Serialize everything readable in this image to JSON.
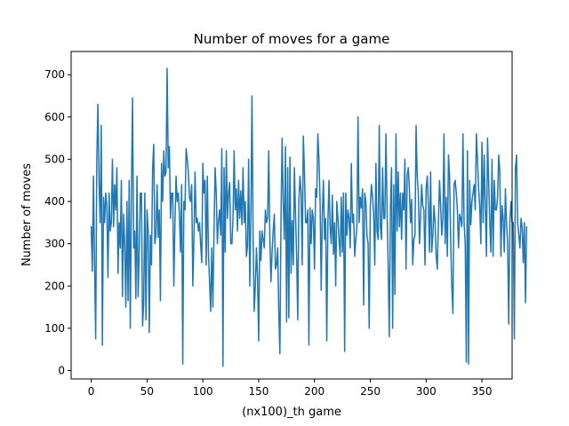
{
  "chart_data": {
    "type": "line",
    "title": "Number of moves for a game",
    "xlabel": "(nx100)_th game",
    "ylabel": "Number of moves",
    "xlim": [
      -18,
      377
    ],
    "ylim": [
      -20,
      755
    ],
    "xticks": [
      0,
      50,
      100,
      150,
      200,
      250,
      300,
      350
    ],
    "yticks": [
      0,
      100,
      200,
      300,
      400,
      500,
      600,
      700
    ],
    "grid": false,
    "legend": "none",
    "series": [
      {
        "color": "#1f77b4",
        "values": [
          340,
          235,
          460,
          250,
          75,
          500,
          630,
          450,
          350,
          580,
          60,
          410,
          350,
          420,
          390,
          220,
          420,
          330,
          350,
          500,
          340,
          440,
          380,
          480,
          230,
          350,
          290,
          450,
          175,
          370,
          300,
          150,
          400,
          165,
          450,
          100,
          420,
          645,
          290,
          330,
          170,
          460,
          175,
          280,
          420,
          420,
          105,
          160,
          420,
          120,
          380,
          330,
          90,
          320,
          250,
          480,
          535,
          300,
          320,
          440,
          315,
          380,
          165,
          490,
          400,
          520,
          460,
          470,
          715,
          480,
          530,
          360,
          420,
          420,
          200,
          350,
          460,
          400,
          420,
          370,
          280,
          440,
          15,
          400,
          380,
          525,
          500,
          470,
          410,
          400,
          440,
          200,
          310,
          470,
          350,
          360,
          330,
          350,
          300,
          255,
          490,
          420,
          450,
          250,
          460,
          280,
          210,
          140,
          290,
          150,
          330,
          480,
          420,
          300,
          355,
          380,
          320,
          525,
          10,
          480,
          280,
          520,
          360,
          420,
          445,
          300,
          300,
          360,
          520,
          380,
          430,
          330,
          450,
          360,
          425,
          345,
          480,
          350,
          400,
          270,
          295,
          500,
          200,
          360,
          650,
          320,
          140,
          200,
          290,
          220,
          70,
          330,
          260,
          330,
          310,
          290,
          380,
          350,
          360,
          520,
          315,
          210,
          280,
          330,
          370,
          240,
          250,
          290,
          140,
          40,
          360,
          550,
          400,
          310,
          530,
          115,
          480,
          125,
          505,
          230,
          355,
          250,
          480,
          370,
          270,
          120,
          400,
          460,
          420,
          250,
          555,
          470,
          350,
          350,
          380,
          60,
          385,
          300,
          380,
          360,
          240,
          430,
          410,
          560,
          500,
          400,
          190,
          370,
          450,
          310,
          360,
          70,
          350,
          450,
          340,
          300,
          415,
          275,
          350,
          200,
          400,
          360,
          310,
          270,
          410,
          280,
          420,
          45,
          420,
          320,
          380,
          360,
          290,
          490,
          350,
          370,
          270,
          310,
          340,
          600,
          350,
          410,
          385,
          430,
          155,
          420,
          400,
          320,
          300,
          100,
          390,
          440,
          410,
          370,
          250,
          490,
          330,
          310,
          580,
          340,
          310,
          480,
          360,
          360,
          560,
          380,
          250,
          80,
          380,
          480,
          100,
          440,
          180,
          560,
          330,
          470,
          340,
          420,
          310,
          420,
          380,
          500,
          240,
          460,
          480,
          430,
          350,
          405,
          250,
          310,
          320,
          580,
          460,
          420,
          300,
          360,
          440,
          390,
          380,
          250,
          430,
          460,
          390,
          280,
          470,
          280,
          320,
          390,
          350,
          270,
          240,
          350,
          450,
          390,
          320,
          360,
          560,
          300,
          410,
          270,
          510,
          460,
          300,
          200,
          135,
          440,
          450,
          420,
          380,
          290,
          370,
          360,
          340,
          560,
          350,
          300,
          20,
          520,
          15,
          450,
          345,
          400,
          420,
          440,
          380,
          560,
          500,
          430,
          390,
          300,
          540,
          350,
          510,
          390,
          270,
          550,
          450,
          350,
          280,
          500,
          270,
          450,
          380,
          380,
          410,
          510,
          470,
          270,
          390,
          360,
          280,
          430,
          350,
          300,
          110,
          350,
          400,
          350,
          350,
          75,
          480,
          510,
          350,
          320,
          290,
          360,
          340,
          255,
          350,
          160,
          340
        ]
      }
    ]
  }
}
